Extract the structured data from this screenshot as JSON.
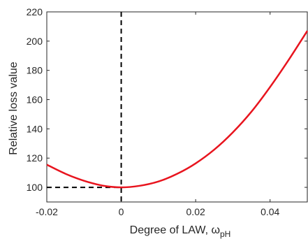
{
  "chart_data": {
    "type": "line",
    "title": "",
    "xlabel": "Degree of LAW, ω",
    "xlabel_subscript": "pH",
    "ylabel": "Relative loss value",
    "xlim": [
      -0.02,
      0.05
    ],
    "ylim": [
      90,
      220
    ],
    "x_ticks": [
      -0.02,
      0,
      0.02,
      0.04
    ],
    "x_tick_labels": [
      "-0.02",
      "0",
      "0.02",
      "0.04"
    ],
    "y_ticks": [
      100,
      120,
      140,
      160,
      180,
      200,
      220
    ],
    "y_tick_labels": [
      "100",
      "120",
      "140",
      "160",
      "180",
      "200",
      "220"
    ],
    "grid": false,
    "series": [
      {
        "color": "#e8141e",
        "style": "solid",
        "x": [
          -0.02,
          -0.015,
          -0.01,
          -0.005,
          0,
          0.005,
          0.01,
          0.015,
          0.02,
          0.025,
          0.03,
          0.035,
          0.04,
          0.045,
          0.05
        ],
        "y": [
          115.5,
          109.3,
          104.5,
          101.2,
          100,
          101.1,
          104,
          109.2,
          116.4,
          125.8,
          137.6,
          151.8,
          168.6,
          187.2,
          207
        ]
      }
    ],
    "reference_lines": [
      {
        "orientation": "vertical",
        "value": 0,
        "color": "#000000",
        "style": "dashed",
        "from": 90,
        "to": 220
      },
      {
        "orientation": "horizontal",
        "value": 100,
        "color": "#000000",
        "style": "dashed",
        "from": -0.02,
        "to": 0
      }
    ]
  }
}
